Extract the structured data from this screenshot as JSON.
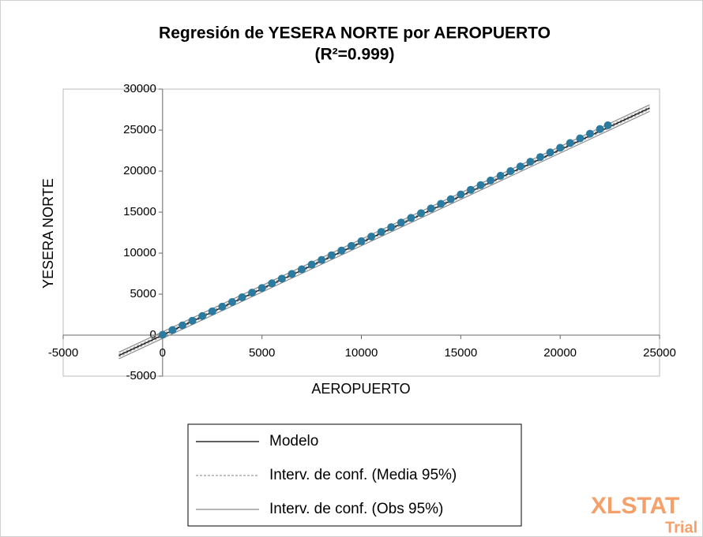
{
  "chart_data": {
    "type": "scatter",
    "title": "Regresión de YESERA NORTE por AEROPUERTO",
    "subtitle": "(R²=0.999)",
    "x_label": "AEROPUERTO",
    "y_label": "YESERA NORTE",
    "xlim": [
      -5000,
      25000
    ],
    "ylim": [
      -5000,
      30000
    ],
    "xticks": [
      -5000,
      0,
      5000,
      10000,
      15000,
      20000,
      25000
    ],
    "yticks": [
      -5000,
      0,
      5000,
      10000,
      15000,
      20000,
      25000,
      30000
    ],
    "points": {
      "color": "#2b7aa0",
      "x": [
        0,
        500,
        1000,
        1500,
        2000,
        2500,
        3000,
        3500,
        4000,
        4500,
        5000,
        5500,
        6000,
        6500,
        7000,
        7500,
        8000,
        8500,
        9000,
        9500,
        10000,
        10500,
        11000,
        11500,
        12000,
        12500,
        13000,
        13500,
        14000,
        14500,
        15000,
        15500,
        16000,
        16500,
        17000,
        17500,
        18000,
        18500,
        19000,
        19500,
        20000,
        20500,
        21000,
        21500,
        22000,
        22400
      ],
      "values": [
        50,
        620,
        1190,
        1760,
        2330,
        2900,
        3470,
        4040,
        4610,
        5180,
        5750,
        6320,
        6890,
        7460,
        8030,
        8600,
        9170,
        9740,
        10310,
        10880,
        11450,
        12020,
        12590,
        13160,
        13730,
        14300,
        14870,
        15440,
        16010,
        16580,
        17150,
        17720,
        18290,
        18860,
        19430,
        20000,
        20570,
        21140,
        21710,
        22280,
        22850,
        23420,
        23990,
        24560,
        25130,
        25586
      ]
    },
    "series": [
      {
        "name": "Modelo",
        "color": "#000000",
        "x": [
          -2200,
          24500
        ],
        "values": [
          -2486,
          27685
        ]
      },
      {
        "name": "Interv. de conf. (Media 95%)",
        "color": "#9a9a9a",
        "x": [
          -2200,
          24500
        ],
        "lower": [
          -2636,
          27535
        ],
        "upper": [
          -2336,
          27835
        ]
      },
      {
        "name": "Interv. de conf. (Obs 95%)",
        "color": "#8a8a8a",
        "x": [
          -2200,
          24500
        ],
        "lower": [
          -2886,
          27285
        ],
        "upper": [
          -2086,
          28085
        ]
      }
    ],
    "watermark": "XLSTAT",
    "watermark_sub": "Trial"
  }
}
